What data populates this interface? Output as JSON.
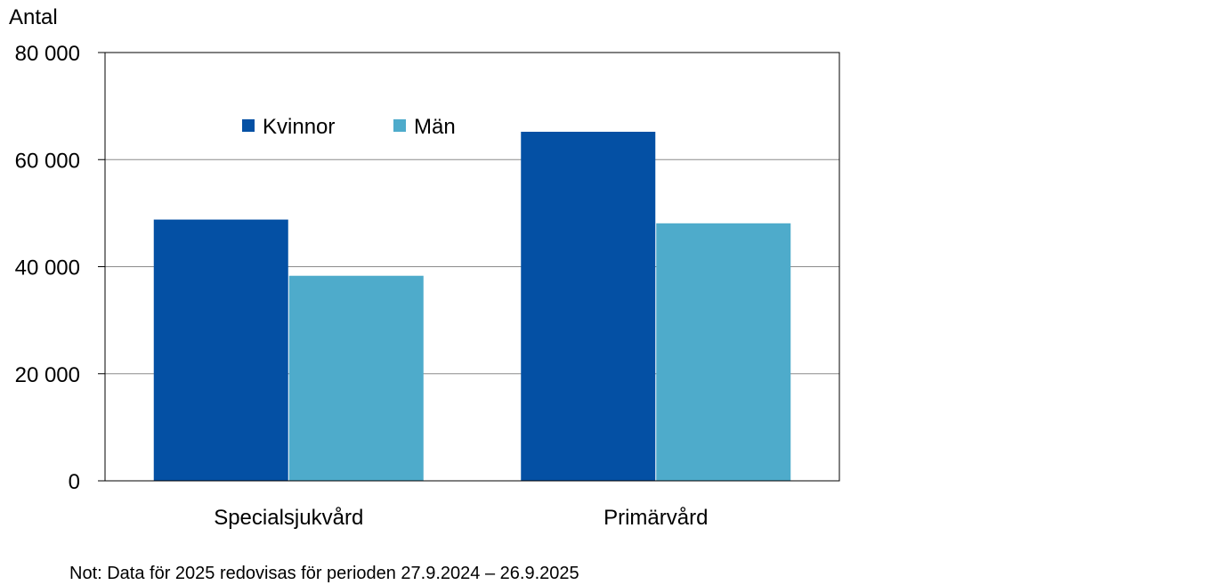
{
  "chart_data": {
    "type": "bar",
    "title": "",
    "xlabel": "",
    "ylabel": "Antal",
    "ylim": [
      0,
      80000
    ],
    "yticks": [
      0,
      20000,
      40000,
      60000,
      80000
    ],
    "ytick_labels": [
      "0",
      "20 000",
      "40 000",
      "60 000",
      "80 000"
    ],
    "categories": [
      "Specialsjukvård",
      "Primärvård"
    ],
    "series": [
      {
        "name": "Kvinnor",
        "color": "#0450a4",
        "values": [
          48800,
          65200
        ]
      },
      {
        "name": "Män",
        "color": "#4eabcb",
        "values": [
          38300,
          48100
        ]
      }
    ],
    "grid": true,
    "legend_position": "top-left"
  },
  "note": "Not: Data för 2025 redovisas för perioden 27.9.2024 – 26.9.2025"
}
